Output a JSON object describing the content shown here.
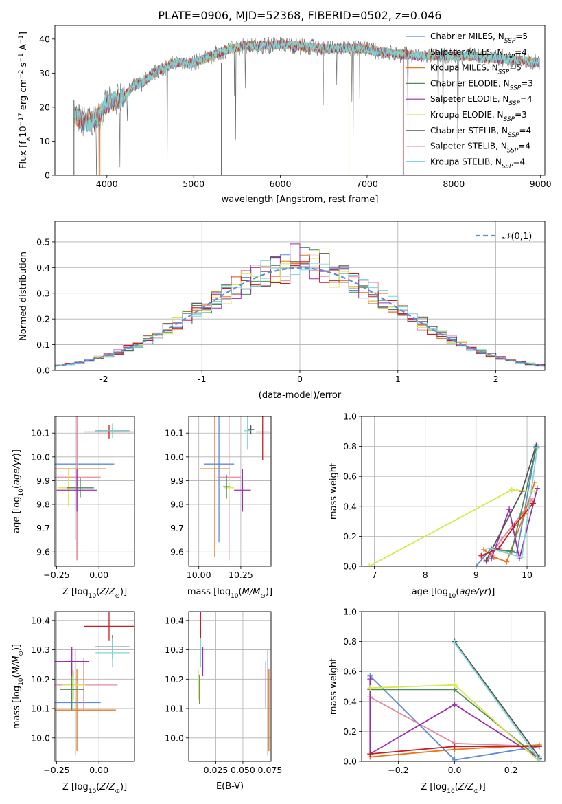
{
  "figure": {
    "title": "PLATE=0906, MJD=52368, FIBERID=0502, z=0.046"
  },
  "chart_data": [
    {
      "id": "spectrum",
      "type": "line",
      "xlabel": "wavelength [Angstrom, rest frame]",
      "ylabel": "Flux [f_λ10^-17 erg cm^-2 s^-1 A^-1]",
      "xlim": [
        3400,
        9050
      ],
      "ylim": [
        0,
        44
      ],
      "xticks": [
        4000,
        5000,
        6000,
        7000,
        8000,
        9000
      ],
      "yticks": [
        0,
        10,
        20,
        30,
        40
      ],
      "grid": false,
      "legend": "top-right",
      "continuum_x": [
        3620,
        3700,
        3800,
        3900,
        4000,
        4100,
        4200,
        4300,
        4400,
        4600,
        4800,
        5000,
        5200,
        5400,
        5600,
        5800,
        6000,
        6200,
        6400,
        6600,
        6800,
        7000,
        7200,
        7400,
        7600,
        7800,
        8000,
        8200,
        8400,
        8600,
        8800,
        8990
      ],
      "continuum_y": [
        18,
        16,
        15.5,
        17,
        21,
        22,
        23,
        26,
        27,
        31,
        33,
        33,
        35,
        37,
        38,
        38,
        38.5,
        38,
        37.5,
        37,
        37.5,
        37,
        36,
        35.5,
        35,
        35,
        35,
        35,
        34.5,
        34,
        33.5,
        33
      ],
      "series": [
        {
          "name": "Chabrier MILES",
          "nssp": "5",
          "color": "#5b8bd9"
        },
        {
          "name": "Salpeter MILES",
          "nssp": "4",
          "color": "#e7879f"
        },
        {
          "name": "Kroupa MILES",
          "nssp": "5",
          "color": "#e0791f"
        },
        {
          "name": "Chabrier ELODIE",
          "nssp": "3",
          "color": "#4e8a5a"
        },
        {
          "name": "Salpeter ELODIE",
          "nssp": "4",
          "color": "#9b2fae"
        },
        {
          "name": "Kroupa ELODIE",
          "nssp": "3",
          "color": "#d8e74a"
        },
        {
          "name": "Chabrier STELIB",
          "nssp": "4",
          "color": "#555555"
        },
        {
          "name": "Salpeter STELIB",
          "nssp": "4",
          "color": "#c81e1e"
        },
        {
          "name": "Kroupa STELIB",
          "nssp": "4",
          "color": "#7fd6d6"
        }
      ]
    },
    {
      "id": "residuals",
      "type": "histogram",
      "xlabel": "(data-model)/error",
      "ylabel": "Normed distribution",
      "xlim": [
        -2.5,
        2.5
      ],
      "ylim": [
        0,
        0.58
      ],
      "xticks": [
        -2,
        -1,
        0,
        1,
        2
      ],
      "yticks": [
        0.0,
        0.1,
        0.2,
        0.3,
        0.4,
        0.5
      ],
      "grid": true,
      "legend": "top-right",
      "reference_curve": "𝒩(0,1)",
      "reference_color": "#5b8bd9",
      "bin_width": 0.1
    },
    {
      "id": "age-vs-Z",
      "type": "scatter",
      "xlabel": "Z [log10(Z/Z☉)]",
      "ylabel": "age  [log10(age/yr)]",
      "xlim": [
        -0.26,
        0.21
      ],
      "ylim": [
        9.54,
        10.17
      ],
      "xticks": [
        -0.25,
        0.0
      ],
      "xticklabels": [
        "−0.25",
        "0.00"
      ],
      "yticks": [
        9.6,
        9.7,
        9.8,
        9.9,
        10.0,
        10.1
      ],
      "grid": true,
      "points": [
        {
          "x": -0.13,
          "y": 9.95,
          "xerr": 0.17,
          "yerr": 0.38,
          "color": "#e0791f"
        },
        {
          "x": -0.14,
          "y": 9.97,
          "xerr": 0.23,
          "yerr": 0.32,
          "color": "#5b8bd9"
        },
        {
          "x": -0.13,
          "y": 9.915,
          "xerr": 0.14,
          "yerr": 0.35,
          "color": "#e7879f"
        },
        {
          "x": -0.18,
          "y": 9.87,
          "xerr": 0.06,
          "yerr": 0.08,
          "color": "#d8e74a"
        },
        {
          "x": -0.11,
          "y": 9.87,
          "xerr": 0.08,
          "yerr": 0.04,
          "color": "#4e8a5a"
        },
        {
          "x": -0.13,
          "y": 9.86,
          "xerr": 0.12,
          "yerr": 0.09,
          "color": "#9b2fae"
        },
        {
          "x": 0.08,
          "y": 10.11,
          "xerr": 0.1,
          "yerr": 0.01,
          "color": "#555555"
        },
        {
          "x": 0.06,
          "y": 10.105,
          "xerr": 0.15,
          "yerr": 0.03,
          "color": "#c81e1e"
        },
        {
          "x": 0.08,
          "y": 10.11,
          "xerr": 0.1,
          "yerr": 0.03,
          "color": "#7fd6d6"
        }
      ]
    },
    {
      "id": "age-vs-mass",
      "type": "scatter",
      "xlabel": "mass [log10(M/M☉)]",
      "ylabel": "",
      "xlim": [
        9.94,
        10.43
      ],
      "ylim": [
        9.54,
        10.17
      ],
      "xticks": [
        10.0,
        10.25
      ],
      "xticklabels": [
        "10.00",
        "10.25"
      ],
      "yticks": [
        9.6,
        9.7,
        9.8,
        9.9,
        10.0,
        10.1
      ],
      "grid": true,
      "points": [
        {
          "x": 10.095,
          "y": 9.95,
          "xerr": 0.09,
          "yerr": 0.37,
          "color": "#e0791f"
        },
        {
          "x": 10.12,
          "y": 9.97,
          "xerr": 0.09,
          "yerr": 0.33,
          "color": "#5b8bd9"
        },
        {
          "x": 10.18,
          "y": 9.915,
          "xerr": 0.07,
          "yerr": 0.35,
          "color": "#e7879f"
        },
        {
          "x": 10.18,
          "y": 9.87,
          "xerr": 0.03,
          "yerr": 0.05,
          "color": "#d8e74a"
        },
        {
          "x": 10.165,
          "y": 9.875,
          "xerr": 0.02,
          "yerr": 0.05,
          "color": "#4e8a5a"
        },
        {
          "x": 10.26,
          "y": 9.86,
          "xerr": 0.05,
          "yerr": 0.09,
          "color": "#9b2fae"
        },
        {
          "x": 10.31,
          "y": 10.115,
          "xerr": 0.02,
          "yerr": 0.02,
          "color": "#555555"
        },
        {
          "x": 10.38,
          "y": 10.105,
          "xerr": 0.04,
          "yerr": 0.12,
          "color": "#c81e1e"
        },
        {
          "x": 10.29,
          "y": 10.11,
          "xerr": 0.02,
          "yerr": 0.08,
          "color": "#7fd6d6"
        }
      ]
    },
    {
      "id": "weight-vs-age",
      "type": "line",
      "xlabel": "age  [log10(age/yr)]",
      "ylabel": "mass weight",
      "xlim": [
        6.75,
        10.35
      ],
      "ylim": [
        0,
        1.0
      ],
      "xticks": [
        7,
        8,
        9,
        10
      ],
      "yticks": [
        0.0,
        0.2,
        0.4,
        0.6,
        0.8,
        1.0
      ],
      "grid": true,
      "series": [
        {
          "color": "#5b8bd9",
          "x": [
            9.0,
            9.3,
            9.8,
            10.18
          ],
          "y": [
            0.0,
            0.12,
            0.09,
            0.8
          ]
        },
        {
          "color": "#e7879f",
          "x": [
            9.2,
            9.5,
            9.9,
            10.1
          ],
          "y": [
            0.03,
            0.18,
            0.35,
            0.45
          ]
        },
        {
          "color": "#e0791f",
          "x": [
            9.15,
            9.35,
            9.6,
            9.95,
            10.15
          ],
          "y": [
            0.11,
            0.06,
            0.03,
            0.35,
            0.56
          ]
        },
        {
          "color": "#4e8a5a",
          "x": [
            9.3,
            9.7,
            10.18
          ],
          "y": [
            0.11,
            0.1,
            0.79
          ]
        },
        {
          "color": "#9b2fae",
          "x": [
            9.3,
            9.65,
            9.85,
            10.2
          ],
          "y": [
            0.05,
            0.38,
            0.05,
            0.52
          ]
        },
        {
          "color": "#d8e74a",
          "x": [
            6.9,
            9.7,
            10.15
          ],
          "y": [
            0.0,
            0.51,
            0.5
          ]
        },
        {
          "color": "#555555",
          "x": [
            9.2,
            9.9,
            10.18
          ],
          "y": [
            0.04,
            0.5,
            0.81
          ]
        },
        {
          "color": "#c81e1e",
          "x": [
            9.1,
            9.45,
            9.75,
            10.12
          ],
          "y": [
            0.07,
            0.12,
            0.27,
            0.42
          ]
        },
        {
          "color": "#7fd6d6",
          "x": [
            9.25,
            9.9,
            10.2
          ],
          "y": [
            0.12,
            0.06,
            0.79
          ]
        }
      ]
    },
    {
      "id": "mass-vs-Z",
      "type": "scatter",
      "xlabel": "Z [log10(Z/Z☉)]",
      "ylabel": "mass [log10(M/M☉)]",
      "xlim": [
        -0.26,
        0.21
      ],
      "ylim": [
        9.92,
        10.43
      ],
      "xticks": [
        -0.25,
        0.0
      ],
      "xticklabels": [
        "−0.25",
        "0.00"
      ],
      "yticks": [
        10.0,
        10.1,
        10.2,
        10.3,
        10.4
      ],
      "grid": true,
      "points": [
        {
          "x": -0.13,
          "y": 10.095,
          "xerr": 0.23,
          "yerr": 0.14,
          "color": "#e0791f"
        },
        {
          "x": -0.14,
          "y": 10.12,
          "xerr": 0.15,
          "yerr": 0.18,
          "color": "#5b8bd9"
        },
        {
          "x": -0.09,
          "y": 10.18,
          "xerr": 0.2,
          "yerr": 0.09,
          "color": "#e7879f"
        },
        {
          "x": -0.15,
          "y": 10.18,
          "xerr": 0.07,
          "yerr": 0.05,
          "color": "#d8e74a"
        },
        {
          "x": -0.16,
          "y": 10.165,
          "xerr": 0.07,
          "yerr": 0.07,
          "color": "#4e8a5a"
        },
        {
          "x": -0.16,
          "y": 10.26,
          "xerr": 0.1,
          "yerr": 0.05,
          "color": "#9b2fae"
        },
        {
          "x": 0.08,
          "y": 10.31,
          "xerr": 0.1,
          "yerr": 0.04,
          "color": "#555555"
        },
        {
          "x": 0.06,
          "y": 10.38,
          "xerr": 0.15,
          "yerr": 0.05,
          "color": "#c81e1e"
        },
        {
          "x": 0.08,
          "y": 10.29,
          "xerr": 0.1,
          "yerr": 0.05,
          "color": "#7fd6d6"
        }
      ]
    },
    {
      "id": "mass-vs-EBV",
      "type": "scatter",
      "xlabel": "E(B-V)",
      "ylabel": "",
      "xlim": [
        0.0,
        0.076
      ],
      "ylim": [
        9.92,
        10.43
      ],
      "xticks": [
        0.025,
        0.05,
        0.075
      ],
      "xticklabels": [
        "0.025",
        "0.050",
        "0.075"
      ],
      "yticks": [
        10.0,
        10.1,
        10.2,
        10.3,
        10.4
      ],
      "grid": true,
      "points": [
        {
          "x": 0.074,
          "y": 10.095,
          "xerr": 0.0,
          "yerr": 0.14,
          "color": "#e0791f"
        },
        {
          "x": 0.073,
          "y": 10.12,
          "xerr": 0.0,
          "yerr": 0.18,
          "color": "#5b8bd9"
        },
        {
          "x": 0.071,
          "y": 10.18,
          "xerr": 0.0,
          "yerr": 0.08,
          "color": "#e7879f"
        },
        {
          "x": 0.009,
          "y": 10.18,
          "xerr": 0.0,
          "yerr": 0.05,
          "color": "#d8e74a"
        },
        {
          "x": 0.01,
          "y": 10.165,
          "xerr": 0.0,
          "yerr": 0.05,
          "color": "#4e8a5a"
        },
        {
          "x": 0.013,
          "y": 10.26,
          "xerr": 0.0,
          "yerr": 0.05,
          "color": "#9b2fae"
        },
        {
          "x": 0.011,
          "y": 10.31,
          "xerr": 0.0,
          "yerr": 0.04,
          "color": "#555555"
        },
        {
          "x": 0.011,
          "y": 10.38,
          "xerr": 0.0,
          "yerr": 0.05,
          "color": "#c81e1e"
        },
        {
          "x": 0.011,
          "y": 10.29,
          "xerr": 0.0,
          "yerr": 0.05,
          "color": "#7fd6d6"
        }
      ]
    },
    {
      "id": "weight-vs-Z",
      "type": "line",
      "xlabel": "Z [log10(Z/Z☉)]",
      "ylabel": "mass weight",
      "xlim": [
        -0.33,
        0.32
      ],
      "ylim": [
        0,
        1.0
      ],
      "xticks": [
        -0.2,
        0.0,
        0.2
      ],
      "xticklabels": [
        "−0.2",
        "0.0",
        "0.2"
      ],
      "yticks": [
        0.0,
        0.2,
        0.4,
        0.6,
        0.8,
        1.0
      ],
      "grid": true,
      "series": [
        {
          "color": "#5b8bd9",
          "x": [
            -0.3,
            0.0,
            0.3
          ],
          "y": [
            0.57,
            0.01,
            0.1
          ]
        },
        {
          "color": "#e7879f",
          "x": [
            -0.3,
            0.0,
            0.3
          ],
          "y": [
            0.43,
            0.12,
            0.1
          ]
        },
        {
          "color": "#e0791f",
          "x": [
            -0.3,
            0.0,
            0.3
          ],
          "y": [
            0.03,
            0.08,
            0.11
          ]
        },
        {
          "color": "#4e8a5a",
          "x": [
            -0.3,
            0.0,
            0.3
          ],
          "y": [
            0.48,
            0.48,
            0.02
          ]
        },
        {
          "color": "#9b2fae",
          "x": [
            -0.3,
            -0.3,
            0.0,
            0.3
          ],
          "y": [
            0.55,
            0.05,
            0.38,
            0.02
          ]
        },
        {
          "color": "#d8e74a",
          "x": [
            -0.3,
            0.0,
            0.3
          ],
          "y": [
            0.49,
            0.51,
            0.0
          ]
        },
        {
          "color": "#555555",
          "x": [
            0.0,
            0.3
          ],
          "y": [
            0.8,
            0.03
          ]
        },
        {
          "color": "#c81e1e",
          "x": [
            -0.3,
            0.0,
            0.3
          ],
          "y": [
            0.05,
            0.1,
            0.1
          ]
        },
        {
          "color": "#7fd6d6",
          "x": [
            0.0,
            0.3
          ],
          "y": [
            0.79,
            0.01
          ]
        }
      ]
    }
  ]
}
